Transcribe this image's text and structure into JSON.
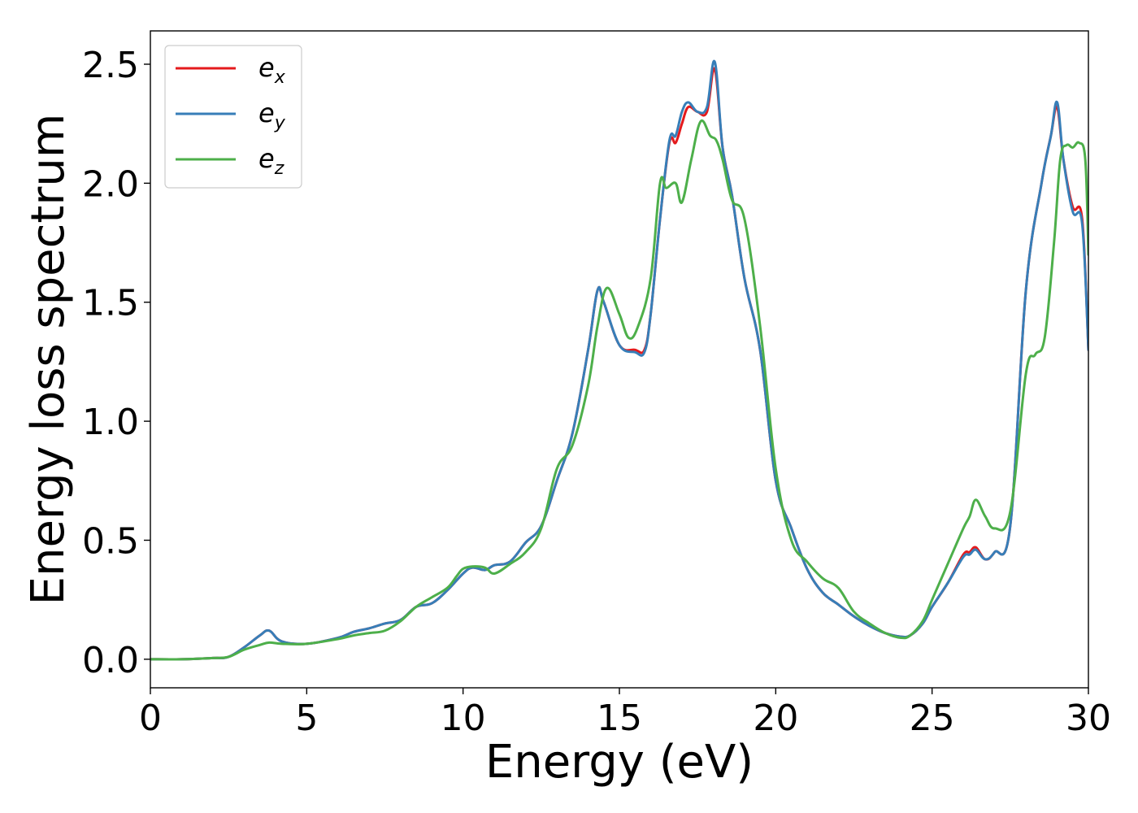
{
  "chart_data": {
    "type": "line",
    "title": "",
    "xlabel": "Energy (eV)",
    "ylabel": "Energy loss spectrum",
    "xlim": [
      0,
      30
    ],
    "ylim": [
      -0.12,
      2.64
    ],
    "xticks": [
      0,
      5,
      10,
      15,
      20,
      25,
      30
    ],
    "xtick_labels": [
      "0",
      "5",
      "10",
      "15",
      "20",
      "25",
      "30"
    ],
    "yticks": [
      0.0,
      0.5,
      1.0,
      1.5,
      2.0,
      2.5
    ],
    "ytick_labels": [
      "0.0",
      "0.5",
      "1.0",
      "1.5",
      "2.0",
      "2.5"
    ],
    "grid": false,
    "legend_position": "top-left",
    "series": [
      {
        "name": "e_x",
        "legend_base": "e",
        "legend_sub": "x",
        "color": "#e41a1c",
        "x": [
          0,
          1,
          2,
          2.5,
          3,
          3.5,
          3.8,
          4.2,
          5,
          6,
          6.5,
          7,
          7.5,
          8,
          8.5,
          9,
          9.5,
          10,
          10.3,
          10.7,
          11,
          11.5,
          12,
          12.5,
          13,
          13.5,
          14,
          14.3,
          14.5,
          15,
          15.5,
          15.8,
          16,
          16.3,
          16.6,
          16.8,
          17,
          17.2,
          17.5,
          17.8,
          18.05,
          18.3,
          18.6,
          19,
          19.5,
          20,
          20.5,
          21,
          21.5,
          22,
          22.5,
          23,
          23.5,
          24,
          24.3,
          24.7,
          25,
          25.5,
          26,
          26.2,
          26.4,
          26.7,
          27,
          27.5,
          28,
          28.5,
          28.8,
          29,
          29.2,
          29.5,
          29.8,
          30
        ],
        "y": [
          0,
          0,
          0.005,
          0.01,
          0.05,
          0.1,
          0.12,
          0.075,
          0.065,
          0.09,
          0.115,
          0.13,
          0.15,
          0.165,
          0.22,
          0.235,
          0.29,
          0.36,
          0.385,
          0.375,
          0.395,
          0.41,
          0.49,
          0.56,
          0.75,
          0.95,
          1.3,
          1.55,
          1.5,
          1.32,
          1.3,
          1.3,
          1.45,
          1.85,
          2.17,
          2.17,
          2.25,
          2.32,
          2.3,
          2.3,
          2.48,
          2.15,
          1.95,
          1.6,
          1.3,
          0.75,
          0.55,
          0.38,
          0.28,
          0.23,
          0.18,
          0.14,
          0.11,
          0.095,
          0.1,
          0.15,
          0.22,
          0.32,
          0.44,
          0.45,
          0.47,
          0.42,
          0.45,
          0.56,
          1.55,
          2.0,
          2.2,
          2.32,
          2.1,
          1.9,
          1.85,
          1.3
        ]
      },
      {
        "name": "e_y",
        "legend_base": "e",
        "legend_sub": "y",
        "color": "#377eb8",
        "x": [
          0,
          1,
          2,
          2.5,
          3,
          3.5,
          3.8,
          4.2,
          5,
          6,
          6.5,
          7,
          7.5,
          8,
          8.5,
          9,
          9.5,
          10,
          10.3,
          10.7,
          11,
          11.5,
          12,
          12.5,
          13,
          13.5,
          14,
          14.3,
          14.5,
          15,
          15.5,
          15.8,
          16,
          16.3,
          16.6,
          16.8,
          17,
          17.2,
          17.5,
          17.8,
          18.05,
          18.3,
          18.6,
          19,
          19.5,
          20,
          20.5,
          21,
          21.5,
          22,
          22.5,
          23,
          23.5,
          24,
          24.3,
          24.7,
          25,
          25.5,
          26,
          26.2,
          26.4,
          26.7,
          27,
          27.5,
          28,
          28.5,
          28.8,
          29,
          29.2,
          29.5,
          29.8,
          30
        ],
        "y": [
          0,
          0,
          0.005,
          0.01,
          0.05,
          0.1,
          0.12,
          0.075,
          0.065,
          0.09,
          0.115,
          0.13,
          0.15,
          0.165,
          0.22,
          0.235,
          0.29,
          0.36,
          0.385,
          0.375,
          0.395,
          0.41,
          0.49,
          0.56,
          0.75,
          0.95,
          1.3,
          1.55,
          1.5,
          1.32,
          1.29,
          1.29,
          1.45,
          1.85,
          2.18,
          2.2,
          2.3,
          2.34,
          2.3,
          2.32,
          2.51,
          2.15,
          1.95,
          1.6,
          1.3,
          0.75,
          0.55,
          0.38,
          0.28,
          0.23,
          0.18,
          0.14,
          0.11,
          0.095,
          0.1,
          0.15,
          0.22,
          0.32,
          0.43,
          0.44,
          0.46,
          0.42,
          0.45,
          0.56,
          1.55,
          2.0,
          2.2,
          2.34,
          2.1,
          1.88,
          1.83,
          1.3
        ]
      },
      {
        "name": "e_z",
        "legend_base": "e",
        "legend_sub": "z",
        "color": "#4daf4a",
        "x": [
          0,
          1,
          2,
          2.5,
          3,
          3.5,
          3.8,
          4.2,
          5,
          6,
          6.5,
          7,
          7.5,
          8,
          8.5,
          9,
          9.5,
          9.8,
          10,
          10.3,
          10.7,
          11,
          11.5,
          12,
          12.5,
          13,
          13.5,
          14,
          14.3,
          14.6,
          15,
          15.3,
          15.6,
          16,
          16.3,
          16.5,
          16.8,
          17,
          17.3,
          17.6,
          17.9,
          18.1,
          18.3,
          18.6,
          19,
          19.5,
          20,
          20.5,
          21,
          21.5,
          22,
          22.5,
          23,
          23.5,
          24,
          24.3,
          24.7,
          25,
          25.5,
          26,
          26.2,
          26.4,
          26.7,
          27,
          27.5,
          28,
          28.3,
          28.6,
          28.9,
          29.1,
          29.3,
          29.5,
          29.7,
          29.9,
          30
        ],
        "y": [
          0,
          0,
          0.005,
          0.01,
          0.04,
          0.06,
          0.07,
          0.065,
          0.065,
          0.085,
          0.1,
          0.11,
          0.12,
          0.16,
          0.22,
          0.26,
          0.3,
          0.35,
          0.38,
          0.39,
          0.385,
          0.36,
          0.4,
          0.45,
          0.55,
          0.8,
          0.9,
          1.15,
          1.4,
          1.56,
          1.45,
          1.35,
          1.4,
          1.6,
          2.0,
          1.98,
          2.0,
          1.92,
          2.1,
          2.26,
          2.2,
          2.18,
          2.1,
          1.93,
          1.85,
          1.4,
          0.8,
          0.5,
          0.41,
          0.34,
          0.3,
          0.2,
          0.15,
          0.11,
          0.09,
          0.1,
          0.16,
          0.25,
          0.4,
          0.55,
          0.6,
          0.67,
          0.6,
          0.55,
          0.62,
          1.2,
          1.28,
          1.35,
          1.75,
          2.1,
          2.16,
          2.15,
          2.17,
          2.1,
          1.7
        ]
      }
    ]
  }
}
